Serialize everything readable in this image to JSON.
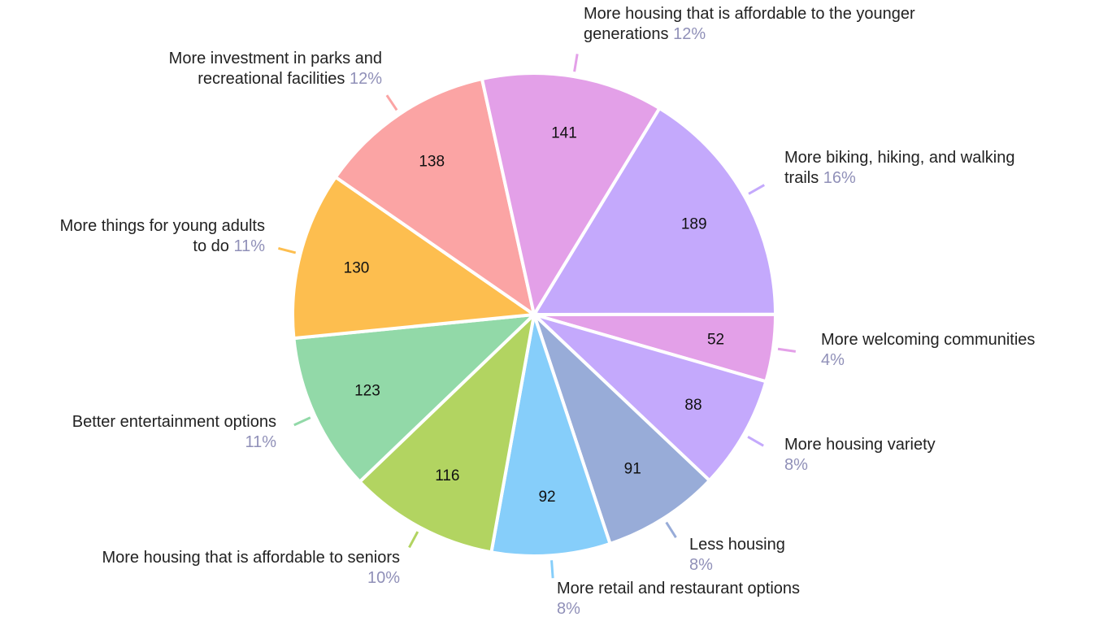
{
  "chart_data": {
    "type": "pie",
    "categories": [
      "More biking, hiking, and walking trails",
      "More welcoming communities",
      "More housing variety",
      "Less housing",
      "More retail and restaurant options",
      "More housing that is affordable to seniors",
      "Better entertainment options",
      "More things for young adults to do",
      "More investment in parks and recreational facilities",
      "More housing that is affordable to the younger generations"
    ],
    "values": [
      189,
      52,
      88,
      91,
      92,
      116,
      123,
      130,
      138,
      141
    ],
    "percent_labels": [
      "16%",
      "4%",
      "8%",
      "8%",
      "8%",
      "10%",
      "11%",
      "11%",
      "12%",
      "12%"
    ],
    "colors": [
      "#c4a9fc",
      "#e3a0e8",
      "#c4a9fc",
      "#98acd8",
      "#86cefa",
      "#b2d461",
      "#92d9a8",
      "#fdbe4f",
      "#fba4a4",
      "#e3a0e8"
    ]
  }
}
